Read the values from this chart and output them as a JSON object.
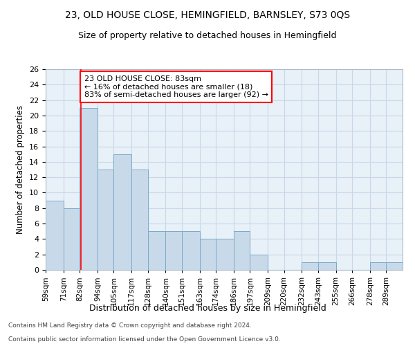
{
  "title": "23, OLD HOUSE CLOSE, HEMINGFIELD, BARNSLEY, S73 0QS",
  "subtitle": "Size of property relative to detached houses in Hemingfield",
  "xlabel": "Distribution of detached houses by size in Hemingfield",
  "ylabel": "Number of detached properties",
  "bar_color": "#c8daea",
  "bar_edge_color": "#7aaac8",
  "bins": [
    59,
    71,
    82,
    94,
    105,
    117,
    128,
    140,
    151,
    163,
    174,
    186,
    197,
    209,
    220,
    232,
    243,
    255,
    266,
    278,
    289,
    300
  ],
  "heights": [
    9,
    8,
    21,
    13,
    15,
    13,
    5,
    5,
    5,
    4,
    4,
    5,
    2,
    0,
    0,
    1,
    1,
    0,
    0,
    1,
    1
  ],
  "tick_labels": [
    "59sqm",
    "71sqm",
    "82sqm",
    "94sqm",
    "105sqm",
    "117sqm",
    "128sqm",
    "140sqm",
    "151sqm",
    "163sqm",
    "174sqm",
    "186sqm",
    "197sqm",
    "209sqm",
    "220sqm",
    "232sqm",
    "243sqm",
    "255sqm",
    "266sqm",
    "278sqm",
    "289sqm"
  ],
  "property_line_x": 83,
  "annotation_line1": "23 OLD HOUSE CLOSE: 83sqm",
  "annotation_line2": "← 16% of detached houses are smaller (18)",
  "annotation_line3": "83% of semi-detached houses are larger (92) →",
  "ylim": [
    0,
    26
  ],
  "yticks": [
    0,
    2,
    4,
    6,
    8,
    10,
    12,
    14,
    16,
    18,
    20,
    22,
    24,
    26
  ],
  "grid_color": "#c8d8e8",
  "background_color": "#e8f0f8",
  "footnote1": "Contains HM Land Registry data © Crown copyright and database right 2024.",
  "footnote2": "Contains public sector information licensed under the Open Government Licence v3.0."
}
